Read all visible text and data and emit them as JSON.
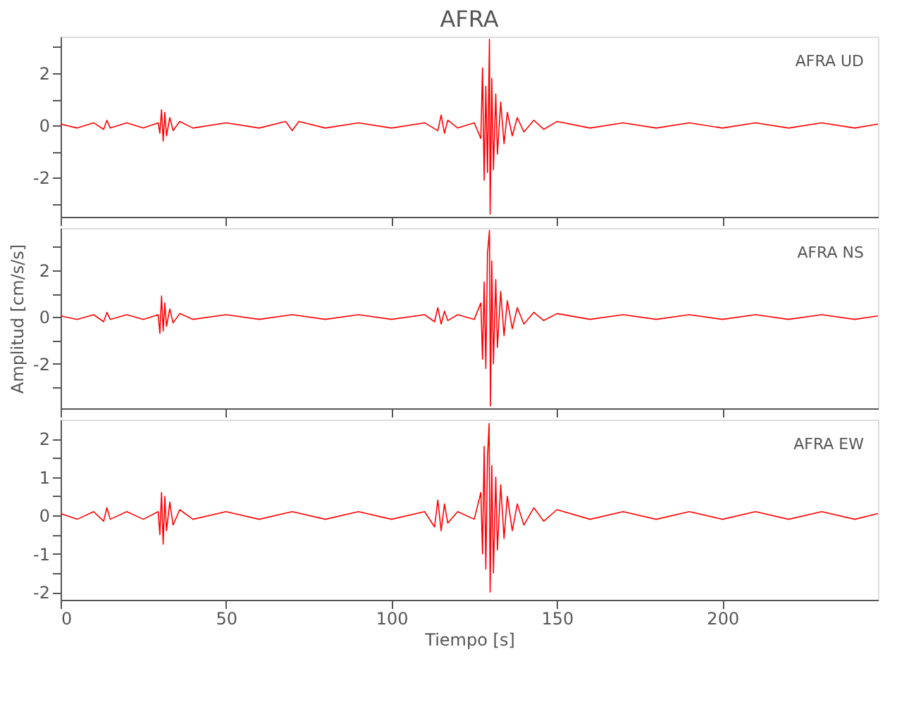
{
  "chart_data": [
    {
      "type": "line",
      "title": "AFRA",
      "annotations": [
        "AFRA   UD"
      ],
      "tick_labels": "y",
      "xlim": [
        0,
        247
      ],
      "ylim": [
        -3.5,
        3.4
      ],
      "xticks": [
        {
          "value": 0,
          "label": null
        },
        {
          "value": 50,
          "label": null
        },
        {
          "value": 100,
          "label": null
        },
        {
          "value": 150,
          "label": null
        },
        {
          "value": 200,
          "label": null
        }
      ],
      "yticks": [
        {
          "value": -3,
          "label": null
        },
        -2,
        {
          "value": -1,
          "label": null
        },
        0,
        {
          "value": 1,
          "label": null
        },
        2,
        {
          "value": 3,
          "label": null
        }
      ],
      "x": [
        0,
        5,
        10,
        13,
        14,
        15,
        20,
        25,
        29.5,
        30,
        30.5,
        31,
        31.5,
        32,
        33,
        34,
        36,
        40,
        50,
        60,
        68,
        70,
        72,
        80,
        90,
        100,
        110,
        114,
        115,
        116,
        117,
        120,
        125,
        127,
        127.5,
        128,
        128.5,
        129,
        129.6,
        129.8,
        130.3,
        130.8,
        131.5,
        132,
        133,
        134,
        135,
        136.5,
        138,
        140,
        143,
        146,
        150,
        160,
        170,
        180,
        190,
        200,
        210,
        220,
        230,
        240,
        247
      ],
      "series": [
        {
          "color": "#ff0000",
          "values": [
            0.05,
            -0.1,
            0.1,
            -0.15,
            0.2,
            -0.1,
            0.1,
            -0.1,
            0.1,
            -0.3,
            0.6,
            -0.6,
            0.5,
            -0.4,
            0.3,
            -0.2,
            0.15,
            -0.1,
            0.1,
            -0.1,
            0.15,
            -0.2,
            0.15,
            -0.1,
            0.1,
            -0.1,
            0.1,
            -0.2,
            0.4,
            -0.3,
            0.2,
            -0.1,
            0.1,
            -0.5,
            2.2,
            -2.1,
            1.5,
            -1.8,
            3.3,
            -3.4,
            1.8,
            -1.7,
            1.2,
            -1.1,
            0.9,
            -0.7,
            0.5,
            -0.4,
            0.3,
            -0.25,
            0.2,
            -0.15,
            0.15,
            -0.1,
            0.1,
            -0.1,
            0.1,
            -0.1,
            0.1,
            -0.1,
            0.1,
            -0.1,
            0.05
          ]
        }
      ]
    },
    {
      "type": "line",
      "ylabel": "Amplitud [cm/s/s]",
      "annotations": [
        "AFRA   NS"
      ],
      "tick_labels": "y",
      "xlim": [
        0,
        247
      ],
      "ylim": [
        -3.9,
        3.8
      ],
      "xticks": [
        {
          "value": 0,
          "label": null
        },
        {
          "value": 50,
          "label": null
        },
        {
          "value": 100,
          "label": null
        },
        {
          "value": 150,
          "label": null
        },
        {
          "value": 200,
          "label": null
        }
      ],
      "yticks": [
        {
          "value": -3,
          "label": null
        },
        -2,
        {
          "value": -1,
          "label": null
        },
        0,
        {
          "value": 1,
          "label": null
        },
        2,
        {
          "value": 3,
          "label": null
        }
      ],
      "x": [
        0,
        5,
        10,
        13,
        14,
        15,
        20,
        25,
        29.5,
        30,
        30.5,
        31,
        31.5,
        32,
        33,
        34,
        36,
        40,
        50,
        60,
        70,
        80,
        90,
        100,
        110,
        113,
        114,
        115,
        116,
        117,
        120,
        125,
        127,
        127.5,
        128,
        128.5,
        129,
        129.6,
        129.9,
        130.3,
        130.8,
        131.5,
        132,
        133,
        134,
        135,
        136.5,
        138,
        140,
        143,
        146,
        150,
        160,
        170,
        180,
        190,
        200,
        210,
        220,
        230,
        240,
        247
      ],
      "series": [
        {
          "color": "#ff0000",
          "values": [
            0.05,
            -0.1,
            0.1,
            -0.2,
            0.2,
            -0.1,
            0.1,
            -0.1,
            0.1,
            -0.7,
            0.9,
            -0.6,
            0.6,
            -0.4,
            0.35,
            -0.25,
            0.15,
            -0.1,
            0.1,
            -0.1,
            0.1,
            -0.1,
            0.1,
            -0.1,
            0.1,
            -0.2,
            0.4,
            -0.3,
            0.25,
            -0.15,
            0.1,
            -0.1,
            0.6,
            -1.8,
            1.5,
            -2.2,
            2.7,
            3.7,
            -3.8,
            2.4,
            -2.0,
            1.6,
            -1.3,
            1.1,
            -0.8,
            0.7,
            -0.5,
            0.4,
            -0.3,
            0.2,
            -0.15,
            0.15,
            -0.1,
            0.1,
            -0.1,
            0.1,
            -0.1,
            0.1,
            -0.1,
            0.1,
            -0.1,
            0.05
          ]
        }
      ]
    },
    {
      "type": "line",
      "xlabel": "Tiempo [s]",
      "annotations": [
        "AFRA   EW"
      ],
      "xlim": [
        0,
        247
      ],
      "ylim": [
        -2.2,
        2.5
      ],
      "xticks": [
        0,
        50,
        100,
        150,
        200
      ],
      "yticks": [
        -2,
        {
          "value": -1.5,
          "label": null
        },
        -1,
        {
          "value": -0.5,
          "label": null
        },
        0,
        {
          "value": 0.5,
          "label": null
        },
        1,
        {
          "value": 1.5,
          "label": null
        },
        2
      ],
      "x": [
        0,
        5,
        10,
        13,
        14,
        15,
        20,
        25,
        29.5,
        30,
        30.5,
        31,
        31.5,
        32,
        33,
        34,
        36,
        40,
        50,
        60,
        70,
        80,
        90,
        100,
        110,
        113,
        114,
        115,
        116,
        117,
        120,
        125,
        127,
        127.5,
        128,
        128.5,
        129,
        129.5,
        129.8,
        130.3,
        130.8,
        131.5,
        132,
        133,
        134,
        135,
        136.5,
        138,
        140,
        143,
        146,
        150,
        160,
        170,
        180,
        190,
        200,
        210,
        220,
        230,
        240,
        247
      ],
      "series": [
        {
          "color": "#ff0000",
          "values": [
            0.05,
            -0.1,
            0.1,
            -0.15,
            0.2,
            -0.1,
            0.1,
            -0.1,
            0.1,
            -0.5,
            0.6,
            -0.75,
            0.5,
            -0.4,
            0.35,
            -0.25,
            0.15,
            -0.1,
            0.1,
            -0.1,
            0.1,
            -0.1,
            0.1,
            -0.1,
            0.1,
            -0.3,
            0.4,
            -0.4,
            0.3,
            -0.2,
            0.1,
            -0.1,
            0.6,
            -1.0,
            1.8,
            -1.4,
            1.5,
            2.4,
            -2.0,
            1.3,
            -1.5,
            1.0,
            -0.9,
            0.8,
            -0.6,
            0.5,
            -0.4,
            0.3,
            -0.25,
            0.2,
            -0.15,
            0.15,
            -0.1,
            0.1,
            -0.1,
            0.1,
            -0.1,
            0.1,
            -0.1,
            0.1,
            -0.1,
            0.05
          ]
        }
      ]
    }
  ]
}
